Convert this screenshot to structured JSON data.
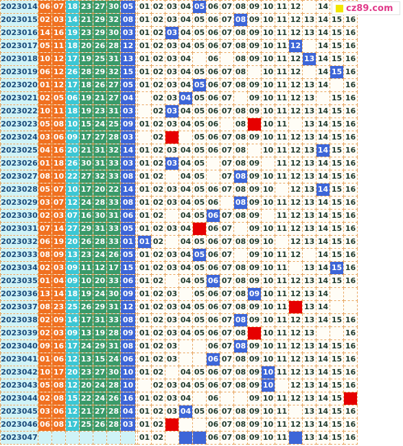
{
  "watermark": {
    "text": "cz89.com",
    "icon": "yellow-square-icon"
  },
  "colors": {
    "red_zone_1": "#f07020",
    "red_zone_2": "#3cc6d4",
    "red_zone_3": "#3a9a6a",
    "blue_ball": "#3d66d8",
    "hit": "#3d66d8",
    "recommend": "#e60000",
    "period_bg": "#cff3f7"
  },
  "chart_data": {
    "type": "table",
    "columns": [
      "period",
      "red1",
      "red2",
      "red3",
      "red4",
      "red5",
      "red6",
      "blue",
      "blue_trend_01_16"
    ],
    "trend_range": [
      1,
      16
    ],
    "rows": [
      {
        "period": "2023014",
        "reds": [
          "06",
          "07",
          "18",
          "23",
          "27",
          "30"
        ],
        "blue": "05",
        "marks": {
          "5": "hit",
          "13": "hidden"
        }
      },
      {
        "period": "2023015",
        "reds": [
          "02",
          "03",
          "14",
          "21",
          "29",
          "32"
        ],
        "blue": "08",
        "marks": {
          "8": "hit"
        }
      },
      {
        "period": "2023016",
        "reds": [
          "14",
          "16",
          "19",
          "23",
          "29",
          "30"
        ],
        "blue": "03",
        "marks": {
          "3": "hit"
        }
      },
      {
        "period": "2023017",
        "reds": [
          "05",
          "11",
          "18",
          "20",
          "26",
          "28"
        ],
        "blue": "12",
        "marks": {
          "12": "hit",
          "13": "blank"
        }
      },
      {
        "period": "2023018",
        "reds": [
          "10",
          "12",
          "17",
          "19",
          "25",
          "31"
        ],
        "blue": "13",
        "marks": {
          "13": "hit",
          "5": "blank",
          "7": "blank"
        }
      },
      {
        "period": "2023019",
        "reds": [
          "06",
          "12",
          "26",
          "28",
          "29",
          "32"
        ],
        "blue": "15",
        "marks": {
          "15": "hit",
          "9": "blank",
          "13": "blank"
        }
      },
      {
        "period": "2023020",
        "reds": [
          "01",
          "12",
          "17",
          "18",
          "26",
          "27"
        ],
        "blue": "05",
        "marks": {
          "5": "hit",
          "15": "blank"
        }
      },
      {
        "period": "2023021",
        "reds": [
          "02",
          "05",
          "06",
          "19",
          "21",
          "27"
        ],
        "blue": "04",
        "marks": {
          "4": "hit",
          "1": "blank",
          "8": "blank",
          "14": "blank"
        }
      },
      {
        "period": "2023022",
        "reds": [
          "10",
          "11",
          "18",
          "19",
          "23",
          "31"
        ],
        "blue": "03",
        "marks": {
          "3": "hit",
          "1": "blank"
        }
      },
      {
        "period": "2023023",
        "reds": [
          "05",
          "08",
          "10",
          "15",
          "24",
          "25"
        ],
        "blue": "09",
        "marks": {
          "9": "red",
          "7": "blank",
          "12": "blank"
        }
      },
      {
        "period": "2023024",
        "reds": [
          "03",
          "06",
          "09",
          "17",
          "27",
          "28"
        ],
        "blue": "03",
        "marks": {
          "3": "red",
          "1": "blank",
          "4": "blank"
        }
      },
      {
        "period": "2023025",
        "reds": [
          "04",
          "16",
          "20",
          "21",
          "31",
          "32"
        ],
        "blue": "14",
        "marks": {
          "14": "hit",
          "9": "blank"
        }
      },
      {
        "period": "2023026",
        "reds": [
          "01",
          "18",
          "26",
          "30",
          "31",
          "33"
        ],
        "blue": "03",
        "marks": {
          "3": "hit",
          "6": "blank",
          "10": "blank"
        }
      },
      {
        "period": "2023027",
        "reds": [
          "08",
          "10",
          "22",
          "27",
          "32",
          "33"
        ],
        "blue": "08",
        "marks": {
          "8": "hit",
          "3": "blank",
          "6": "blank"
        }
      },
      {
        "period": "2023028",
        "reds": [
          "05",
          "07",
          "10",
          "17",
          "20",
          "22"
        ],
        "blue": "14",
        "marks": {
          "14": "hit",
          "11": "blank"
        }
      },
      {
        "period": "2023029",
        "reds": [
          "03",
          "07",
          "12",
          "24",
          "28",
          "33"
        ],
        "blue": "08",
        "marks": {
          "8": "hit",
          "7": "blank"
        }
      },
      {
        "period": "2023030",
        "reds": [
          "02",
          "03",
          "07",
          "16",
          "30",
          "31"
        ],
        "blue": "06",
        "marks": {
          "6": "hit",
          "3": "blank",
          "10": "blank"
        }
      },
      {
        "period": "2023031",
        "reds": [
          "07",
          "14",
          "27",
          "29",
          "31",
          "33"
        ],
        "blue": "05",
        "marks": {
          "5": "red",
          "8": "blank"
        }
      },
      {
        "period": "2023032",
        "reds": [
          "06",
          "19",
          "20",
          "26",
          "28",
          "33"
        ],
        "blue": "01",
        "marks": {
          "1": "hit",
          "3": "blank",
          "11": "blank"
        }
      },
      {
        "period": "2023033",
        "reds": [
          "08",
          "09",
          "13",
          "23",
          "24",
          "26"
        ],
        "blue": "05",
        "marks": {
          "5": "hit",
          "8": "blank",
          "13": "blank"
        }
      },
      {
        "period": "2023034",
        "reds": [
          "02",
          "03",
          "09",
          "11",
          "12",
          "17"
        ],
        "blue": "15",
        "marks": {
          "15": "hit",
          "12": "blank"
        }
      },
      {
        "period": "2023035",
        "reds": [
          "01",
          "04",
          "09",
          "10",
          "20",
          "33"
        ],
        "blue": "06",
        "marks": {
          "6": "hit",
          "3": "blank"
        }
      },
      {
        "period": "2023036",
        "reds": [
          "13",
          "14",
          "18",
          "19",
          "24",
          "30"
        ],
        "blue": "09",
        "marks": {
          "9": "hit",
          "4": "blank",
          "15": "blank",
          "16": "blank"
        }
      },
      {
        "period": "2023037",
        "reds": [
          "08",
          "23",
          "25",
          "26",
          "29",
          "31"
        ],
        "blue": "12",
        "marks": {
          "12": "red",
          "15": "blank",
          "16": "blank"
        }
      },
      {
        "period": "2023038",
        "reds": [
          "02",
          "09",
          "14",
          "17",
          "31",
          "33"
        ],
        "blue": "08",
        "marks": {
          "8": "hit"
        }
      },
      {
        "period": "2023039",
        "reds": [
          "02",
          "03",
          "09",
          "13",
          "19",
          "28"
        ],
        "blue": "09",
        "marks": {
          "9": "red",
          "14": "blank",
          "15": "blank"
        }
      },
      {
        "period": "2023040",
        "reds": [
          "09",
          "16",
          "17",
          "24",
          "29",
          "31"
        ],
        "blue": "08",
        "marks": {
          "8": "hit",
          "4": "blank",
          "5": "blank"
        }
      },
      {
        "period": "2023041",
        "reds": [
          "01",
          "06",
          "12",
          "13",
          "15",
          "24"
        ],
        "blue": "06",
        "marks": {
          "6": "hit",
          "4": "blank",
          "5": "blank"
        }
      },
      {
        "period": "2023042",
        "reds": [
          "10",
          "17",
          "20",
          "23",
          "27",
          "30"
        ],
        "blue": "10",
        "marks": {
          "10": "hit",
          "3": "blank"
        }
      },
      {
        "period": "2023043",
        "reds": [
          "05",
          "08",
          "12",
          "20",
          "24",
          "28"
        ],
        "blue": "10",
        "marks": {
          "10": "hit",
          "1": "blank",
          "11": "blank"
        }
      },
      {
        "period": "2023044",
        "reds": [
          "02",
          "08",
          "15",
          "22",
          "24",
          "26"
        ],
        "blue": "16",
        "marks": {
          "16": "red",
          "5": "blank",
          "7": "blank",
          "8": "blank"
        }
      },
      {
        "period": "2023045",
        "reds": [
          "03",
          "06",
          "12",
          "21",
          "27",
          "28"
        ],
        "blue": "04",
        "marks": {
          "4": "hit",
          "12": "blank"
        }
      },
      {
        "period": "2023046",
        "reds": [
          "06",
          "08",
          "17",
          "25",
          "26",
          "28"
        ],
        "blue": "03",
        "marks": {
          "3": "red",
          "4": "blank",
          "5": "blank"
        }
      },
      {
        "period": "2023047",
        "reds": [],
        "blue": "",
        "marks": {
          "3": "blank",
          "4": "hit-blank",
          "5": "hit-blank",
          "12": "hit-blank"
        }
      }
    ]
  }
}
